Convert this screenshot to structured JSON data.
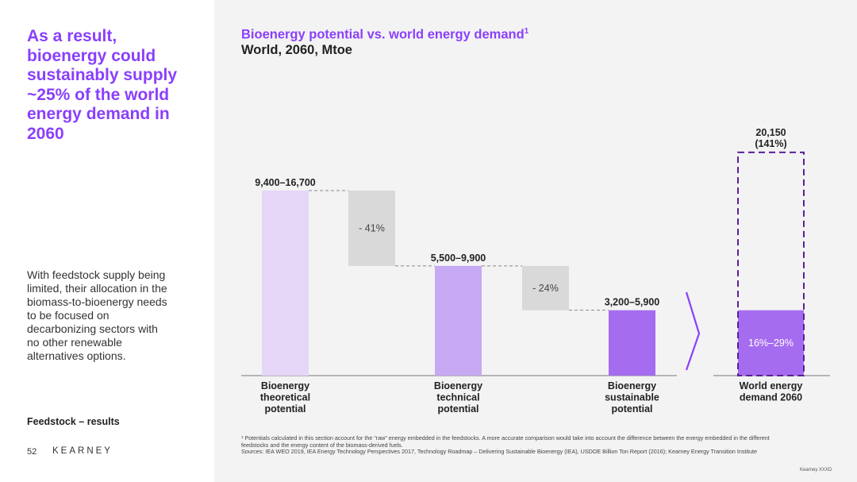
{
  "left": {
    "headline": "As a result,\nbioenergy could\nsustainably supply\n~25% of the world\nenergy demand in\n2060",
    "body": "With feedstock supply being\nlimited, their allocation in the\nbiomass-to-bioenergy needs\nto be focused on\ndecarbonizing sectors with\nno other renewable\nalternatives options.",
    "section_label": "Feedstock – results",
    "page_number": "52",
    "brand": "KEARNEY"
  },
  "chart": {
    "title": "Bioenergy potential vs. world energy demand",
    "title_footnote_mark": "1",
    "subtitle": "World, 2060, Mtoe"
  },
  "colors": {
    "purple": "#8a3ffc",
    "theoretical_bar": "#e5d6f8",
    "technical_bar": "#c6a9f2",
    "sustainable_bar": "#a66cf0",
    "reduction_bar": "#d9d9d9",
    "panel_bg": "#f3f3f3"
  },
  "chart_data": {
    "type": "bar",
    "subtype": "waterfall",
    "unit": "Mtoe",
    "categories": [
      "Bioenergy theoretical potential",
      "Bioenergy technical potential",
      "Bioenergy sustainable potential",
      "World energy demand 2060"
    ],
    "category_label_lines": [
      [
        "Bioenergy",
        "theoretical",
        "potential"
      ],
      [
        "Bioenergy",
        "technical",
        "potential"
      ],
      [
        "Bioenergy",
        "sustainable",
        "potential"
      ],
      [
        "World energy",
        "demand 2060"
      ]
    ],
    "values": [
      16700,
      9900,
      5900,
      20150
    ],
    "value_labels": [
      "9,400–16,700",
      "5,500–9,900",
      "3,200–5,900",
      "20,150"
    ],
    "value_sublabels": [
      "",
      "",
      "",
      "(141%)"
    ],
    "reductions": [
      {
        "label": "- 41%",
        "from": 16700,
        "to": 9900
      },
      {
        "label": "- 24%",
        "from": 9900,
        "to": 5900
      }
    ],
    "demand_share": {
      "label": "16%–29%",
      "value": 5900
    },
    "ylim": [
      0,
      24000
    ]
  },
  "footnote": {
    "line1": "¹ Potentials calculated in this section account for the “raw” energy embedded in the feedstocks. A more accurate comparison would take into account the difference between the energy embedded in the different",
    "line2": "feedstocks and the energy content of the biomass-derived fuels.",
    "sources": "Sources: IEA WEO 2019, IEA Energy Technology Perspectives 2017, Technology Roadmap – Delivering Sustainable Bioenergy (IEA), USDOE Billion Ton Report (2016); Kearney Energy Transition Institute"
  },
  "copyright": "Kearney XXXD"
}
